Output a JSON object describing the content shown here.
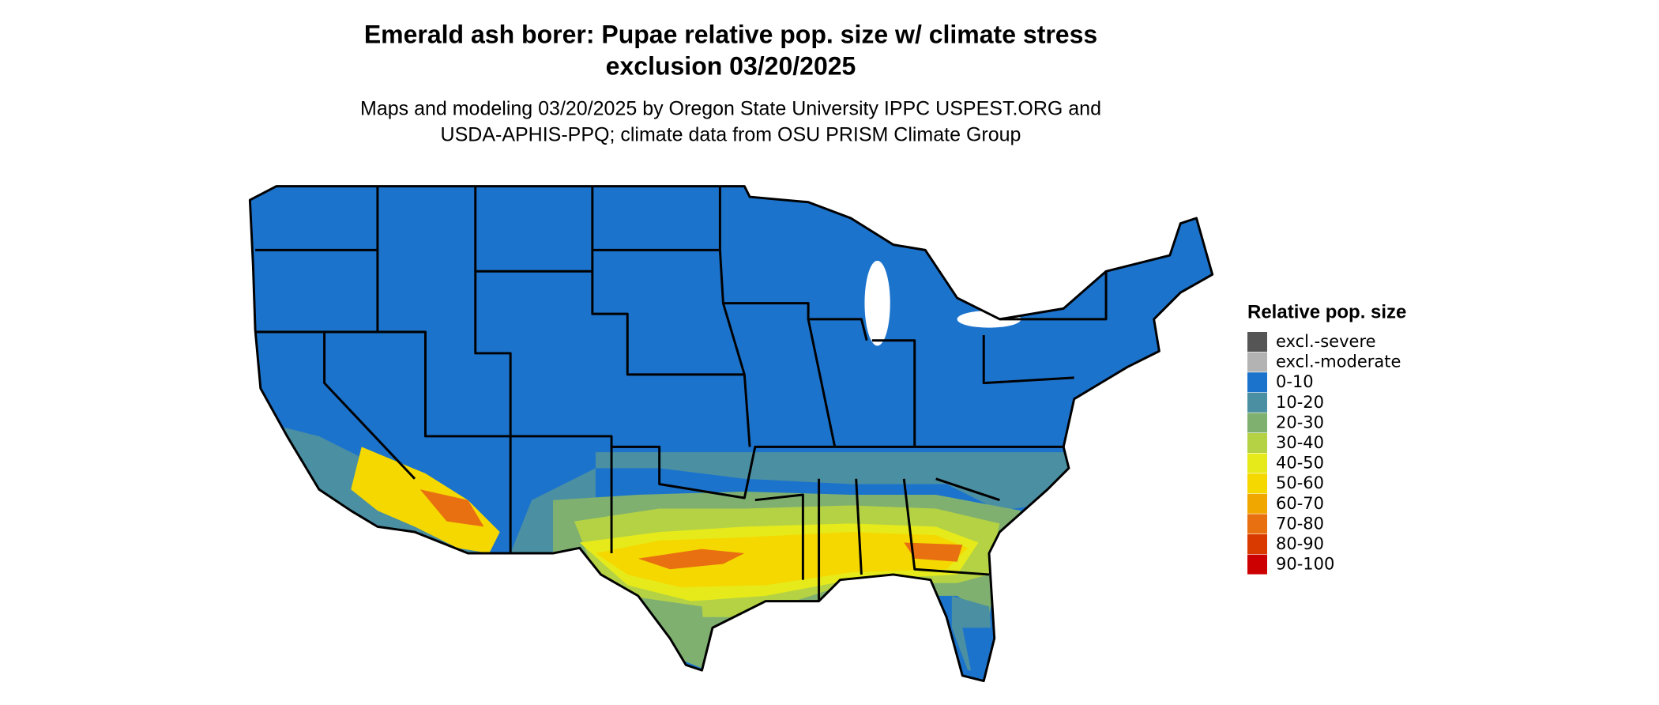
{
  "header": {
    "title_lines": [
      "Emerald ash borer: Pupae relative pop. size w/ climate stress",
      "exclusion 03/20/2025"
    ],
    "subtitle_lines": [
      "Maps and modeling 03/20/2025 by Oregon State University IPPC USPEST.ORG and",
      "USDA-APHIS-PPQ; climate data from OSU PRISM Climate Group"
    ]
  },
  "legend": {
    "title": "Relative pop. size",
    "items": [
      {
        "label": "excl.-severe",
        "color": "#555555"
      },
      {
        "label": "excl.-moderate",
        "color": "#b3b3b3"
      },
      {
        "label": "0-10",
        "color": "#1c73cc"
      },
      {
        "label": "10-20",
        "color": "#4b8fa3"
      },
      {
        "label": "20-30",
        "color": "#7fb070"
      },
      {
        "label": "30-40",
        "color": "#b4d244"
      },
      {
        "label": "40-50",
        "color": "#e6ea1a"
      },
      {
        "label": "50-60",
        "color": "#f5d800"
      },
      {
        "label": "60-70",
        "color": "#f0a800"
      },
      {
        "label": "70-80",
        "color": "#e87010"
      },
      {
        "label": "80-90",
        "color": "#d83a00"
      },
      {
        "label": "90-100",
        "color": "#cc0000"
      }
    ]
  }
}
